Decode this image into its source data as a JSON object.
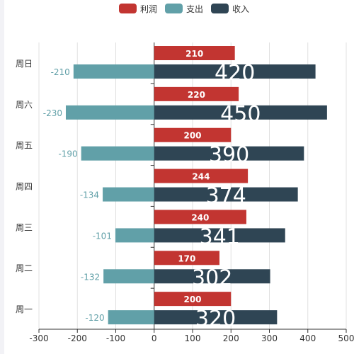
{
  "chart_data": {
    "type": "bar",
    "orientation": "horizontal",
    "categories": [
      "周一",
      "周二",
      "周三",
      "周四",
      "周五",
      "周六",
      "周日"
    ],
    "series": [
      {
        "name": "利润",
        "color": "#c23531",
        "values": [
          200,
          170,
          240,
          244,
          200,
          220,
          210
        ]
      },
      {
        "name": "支出",
        "color": "#61a0a8",
        "values": [
          -120,
          -132,
          -101,
          -134,
          -190,
          -230,
          -210
        ]
      },
      {
        "name": "收入",
        "color": "#2f4554",
        "values": [
          320,
          302,
          341,
          374,
          390,
          450,
          420
        ]
      }
    ],
    "xlim": [
      -300,
      500
    ],
    "xticks": [
      -300,
      -200,
      -100,
      0,
      100,
      200,
      300,
      400,
      500
    ],
    "grid": true,
    "legend_position": "top-center",
    "data_labels": true
  }
}
